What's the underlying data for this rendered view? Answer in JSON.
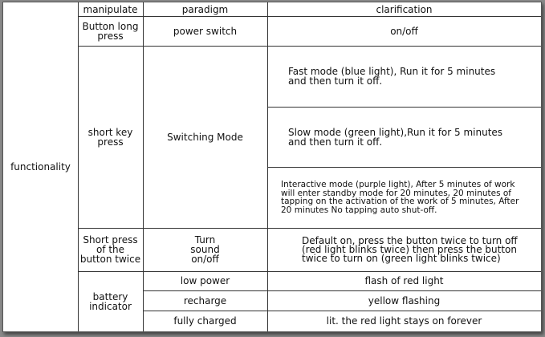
{
  "header": {
    "col1": "",
    "col2": "manipulate",
    "col3": "paradigm",
    "col4": "clarification"
  },
  "category": "functionality",
  "rows": {
    "long_press": {
      "manipulate": "Button long press",
      "paradigm": "power switch",
      "clarification": "on/off"
    },
    "short_press": {
      "manipulate": "short key press",
      "paradigm": "Switching Mode",
      "clarifications": [
        "Fast mode (blue light),   Run it for 5 minutes and then turn it off.",
        "Slow mode (green light),Run it for 5 minutes and then turn it off.",
        "Interactive mode (purple light),   After 5 minutes of work will enter standby mode for 20 minutes, 20 minutes of tapping on the activation of the work of 5 minutes,   After 20 minutes No tapping auto shut-off."
      ]
    },
    "double_press": {
      "manipulate": "Short press of the button twice",
      "paradigm": "Turn sound on/off",
      "clarification": "Default on, press the button twice to turn off (red light blinks twice) then press the button twice to turn on (green light blinks twice)"
    },
    "battery": {
      "manipulate": "battery indicator",
      "items": [
        {
          "paradigm": "low power",
          "clarification": "flash of red light"
        },
        {
          "paradigm": "recharge",
          "clarification": "yellow flashing"
        },
        {
          "paradigm": "fully charged",
          "clarification": "lit. the red light stays on forever"
        }
      ]
    }
  }
}
